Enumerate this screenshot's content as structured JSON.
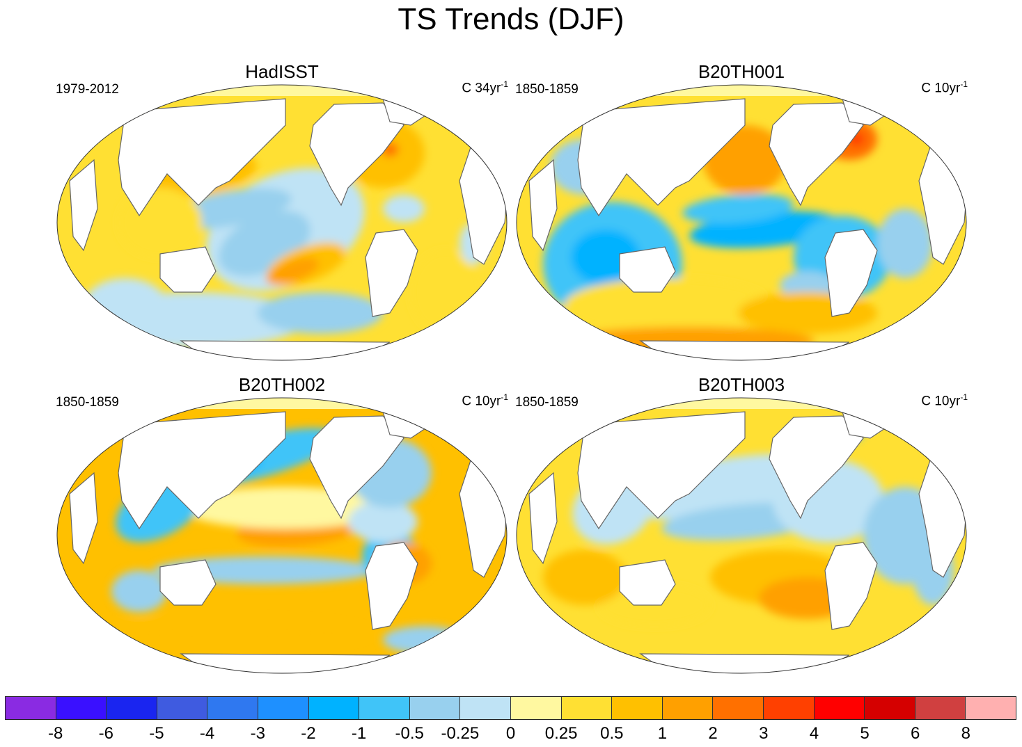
{
  "title": "TS Trends (DJF)",
  "panels": [
    {
      "title": "HadISST",
      "period": "1979-2012",
      "units": "C 34yr",
      "units_exp": "-1",
      "pattern": 0
    },
    {
      "title": "B20TH001",
      "period": "1850-1859",
      "units": "C 10yr",
      "units_exp": "-1",
      "pattern": 1
    },
    {
      "title": "B20TH002",
      "period": "1850-1859",
      "units": "C 10yr",
      "units_exp": "-1",
      "pattern": 2
    },
    {
      "title": "B20TH003",
      "period": "1850-1859",
      "units": "C 10yr",
      "units_exp": "-1",
      "pattern": 3
    }
  ],
  "colorbar": {
    "colors": [
      "#8a2be2",
      "#3a10ff",
      "#1a25f0",
      "#3f5be0",
      "#2f78f0",
      "#1e90ff",
      "#00b2ff",
      "#40c4f8",
      "#98d0ee",
      "#bfe3f5",
      "#fff8a0",
      "#ffe033",
      "#ffc000",
      "#ffa000",
      "#ff7000",
      "#ff4000",
      "#ff0000",
      "#d50000",
      "#d04040",
      "#ffb0b0"
    ],
    "labels": [
      "-8",
      "-6",
      "-5",
      "-4",
      "-3",
      "-2",
      "-1",
      "-0.5",
      "-0.25",
      "0",
      "0.25",
      "0.5",
      "1",
      "2",
      "3",
      "4",
      "5",
      "6",
      "8"
    ]
  }
}
